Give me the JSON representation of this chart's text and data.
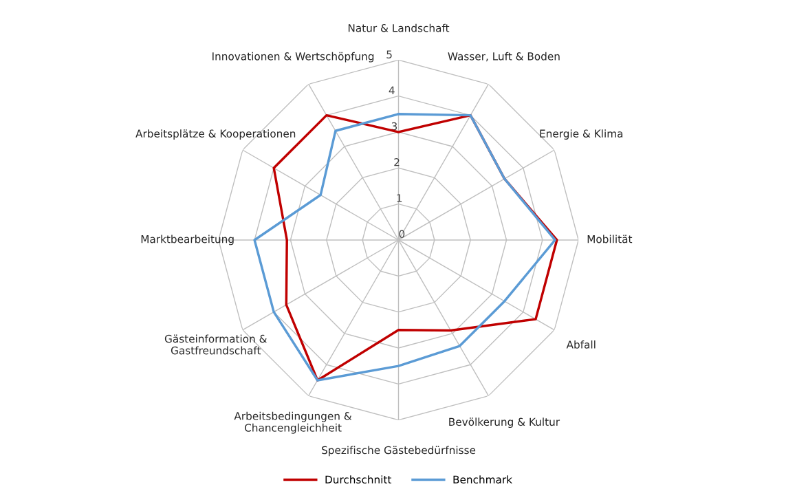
{
  "chart_data": {
    "type": "radar",
    "categories": [
      "Natur & Landschaft",
      "Wasser, Luft & Boden",
      "Energie & Klima",
      "Mobilität",
      "Abfall",
      "Bevölkerung & Kultur",
      "Spezifische Gästebedürfnisse",
      "Arbeitsbedingungen &\nChancengleichheit",
      "Gästeinformation &\nGastfreundschaft",
      "Marktbearbeitung",
      "Arbeitsplätze & Kooperationen",
      "Innovationen & Wertschöpfung"
    ],
    "series": [
      {
        "name": "Durchschnitt",
        "color": "#c00000",
        "values": [
          3.0,
          4.0,
          3.4,
          4.4,
          4.4,
          2.9,
          2.5,
          4.5,
          3.6,
          3.1,
          4.0,
          4.0
        ]
      },
      {
        "name": "Benchmark",
        "color": "#5b9bd5",
        "values": [
          3.5,
          4.0,
          3.4,
          4.35,
          3.4,
          3.4,
          3.5,
          4.5,
          4.0,
          4.0,
          2.5,
          3.5
        ]
      }
    ],
    "ylim": [
      0,
      5
    ],
    "yticks": [
      0,
      1,
      2,
      3,
      4,
      5
    ],
    "grid": true,
    "legend": "bottom",
    "marker": "none",
    "line_style": "solid"
  }
}
